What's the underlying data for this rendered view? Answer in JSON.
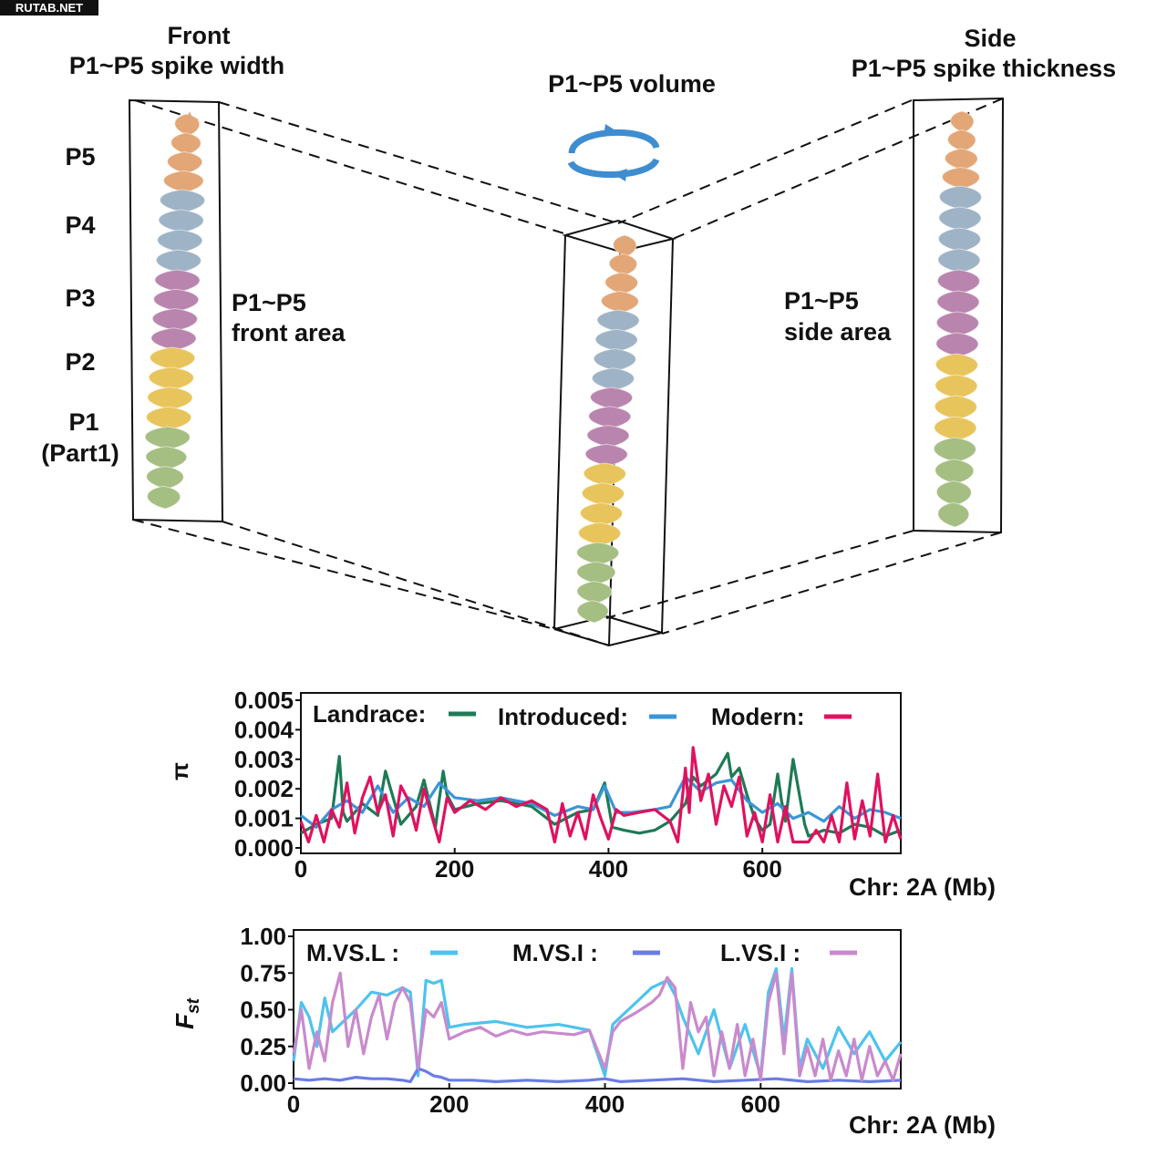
{
  "watermark": "RUTAB.NET",
  "diagram": {
    "front_title_1": "Front",
    "front_title_2": "P1~P5 spike width",
    "volume_title": "P1~P5 volume",
    "side_title_1": "Side",
    "side_title_2": "P1~P5 spike thickness",
    "part_labels": [
      "P5",
      "P4",
      "P3",
      "P2",
      "P1"
    ],
    "part1_note": "(Part1)",
    "front_area_1": "P1~P5",
    "front_area_2": "front area",
    "side_area_1": "P1~P5",
    "side_area_2": "side area",
    "part_colors": {
      "P5": "#E3A676",
      "P4": "#9FB3C6",
      "P3": "#B985AE",
      "P2": "#E8C45C",
      "P1": "#A5BE82"
    },
    "rotate_arrow_color": "#3D8DD0"
  },
  "chart_data": [
    {
      "type": "line",
      "ylabel": "π",
      "xlabel": "Chr: 2A (Mb)",
      "xlim": [
        0,
        780
      ],
      "ylim": [
        0,
        0.005
      ],
      "xticks": [
        "0",
        "200",
        "400",
        "600"
      ],
      "yticks": [
        "0.000",
        "0.001",
        "0.002",
        "0.003",
        "0.004",
        "0.005"
      ],
      "legend": [
        "Landrace:",
        "Introduced:",
        "Modern:"
      ],
      "series": [
        {
          "name": "Landrace",
          "color": "#1E7A55",
          "x": [
            0,
            20,
            40,
            50,
            55,
            60,
            80,
            100,
            110,
            130,
            150,
            160,
            175,
            185,
            190,
            200,
            230,
            260,
            300,
            330,
            360,
            380,
            395,
            405,
            420,
            440,
            460,
            480,
            500,
            510,
            520,
            540,
            555,
            560,
            570,
            580,
            590,
            600,
            610,
            620,
            625,
            630,
            640,
            655,
            660,
            680,
            700,
            720,
            740,
            760,
            780
          ],
          "y": [
            0.0005,
            0.0008,
            0.001,
            0.0031,
            0.0012,
            0.0009,
            0.0015,
            0.0011,
            0.0026,
            0.0008,
            0.0014,
            0.0023,
            0.0007,
            0.0026,
            0.0018,
            0.0013,
            0.0015,
            0.0016,
            0.0014,
            0.0008,
            0.0012,
            0.0013,
            0.0022,
            0.0007,
            0.0006,
            0.0005,
            0.0006,
            0.0009,
            0.0015,
            0.0024,
            0.0021,
            0.0025,
            0.0032,
            0.0024,
            0.0027,
            0.0018,
            0.001,
            0.0006,
            0.0008,
            0.0025,
            0.0016,
            0.0009,
            0.003,
            0.0008,
            0.0004,
            0.0006,
            0.0005,
            0.0008,
            0.0007,
            0.0004,
            0.0006
          ]
        },
        {
          "name": "Introduced",
          "color": "#3A96D8",
          "x": [
            0,
            20,
            40,
            60,
            80,
            100,
            120,
            140,
            160,
            180,
            200,
            230,
            260,
            300,
            330,
            360,
            380,
            395,
            410,
            430,
            460,
            480,
            500,
            520,
            540,
            560,
            580,
            600,
            620,
            640,
            660,
            680,
            700,
            720,
            740,
            760,
            780
          ],
          "y": [
            0.0011,
            0.0007,
            0.0013,
            0.0016,
            0.0012,
            0.0021,
            0.0012,
            0.0017,
            0.0014,
            0.0022,
            0.0017,
            0.0016,
            0.0017,
            0.0015,
            0.0011,
            0.0014,
            0.0013,
            0.0021,
            0.0012,
            0.0012,
            0.0013,
            0.0014,
            0.0024,
            0.0019,
            0.0022,
            0.0023,
            0.0016,
            0.0012,
            0.0015,
            0.001,
            0.0012,
            0.0009,
            0.0014,
            0.001,
            0.0013,
            0.0012,
            0.001
          ]
        },
        {
          "name": "Modern",
          "color": "#E0115F",
          "x": [
            0,
            10,
            20,
            30,
            40,
            50,
            60,
            70,
            80,
            90,
            100,
            110,
            120,
            130,
            140,
            150,
            160,
            170,
            180,
            190,
            200,
            220,
            240,
            260,
            280,
            300,
            320,
            330,
            340,
            350,
            360,
            370,
            380,
            390,
            400,
            410,
            420,
            440,
            460,
            480,
            490,
            500,
            505,
            510,
            520,
            530,
            540,
            550,
            560,
            570,
            580,
            590,
            600,
            610,
            620,
            630,
            640,
            650,
            660,
            670,
            680,
            690,
            700,
            710,
            720,
            730,
            740,
            750,
            760,
            770,
            780
          ],
          "y": [
            0.0009,
            0.0002,
            0.0011,
            0.0002,
            0.0013,
            0.0007,
            0.0022,
            0.0005,
            0.0017,
            0.0024,
            0.0012,
            0.0018,
            0.0004,
            0.0021,
            0.0016,
            0.0006,
            0.002,
            0.0011,
            0.0002,
            0.0017,
            0.0012,
            0.0016,
            0.0013,
            0.0017,
            0.0014,
            0.0016,
            0.0013,
            0.0002,
            0.0015,
            0.0004,
            0.0012,
            0.0003,
            0.0018,
            0.001,
            0.0003,
            0.0013,
            0.0011,
            0.0012,
            0.0013,
            0.0009,
            0.0002,
            0.0027,
            0.0012,
            0.0034,
            0.0016,
            0.0025,
            0.0008,
            0.0021,
            0.0014,
            0.0024,
            0.0004,
            0.0012,
            0.0002,
            0.0018,
            0.0002,
            0.0014,
            0.0002,
            0.0002,
            0.0002,
            0.0006,
            0.0002,
            0.0011,
            0.0002,
            0.0022,
            0.0003,
            0.0016,
            0.0004,
            0.0025,
            0.0002,
            0.0011,
            0.0003
          ]
        }
      ]
    },
    {
      "type": "line",
      "ylabel": "Fst",
      "xlabel": "Chr: 2A (Mb)",
      "xlim": [
        0,
        780
      ],
      "ylim": [
        0,
        1.0
      ],
      "xticks": [
        "0",
        "200",
        "400",
        "600"
      ],
      "yticks": [
        "0.00",
        "0.25",
        "0.50",
        "0.75",
        "1.00"
      ],
      "legend": [
        "M.VS.L :",
        "M.VS.I :",
        "L.VS.I :"
      ],
      "series": [
        {
          "name": "M.VS.L",
          "color": "#4DC3EE",
          "x": [
            0,
            10,
            20,
            30,
            40,
            50,
            60,
            80,
            100,
            120,
            140,
            150,
            160,
            170,
            180,
            190,
            200,
            220,
            260,
            300,
            340,
            380,
            400,
            410,
            420,
            440,
            460,
            480,
            490,
            500,
            520,
            540,
            560,
            580,
            600,
            610,
            620,
            630,
            640,
            650,
            660,
            680,
            700,
            720,
            740,
            760,
            780
          ],
          "y": [
            0.15,
            0.55,
            0.45,
            0.25,
            0.58,
            0.35,
            0.4,
            0.5,
            0.62,
            0.6,
            0.65,
            0.62,
            0.05,
            0.7,
            0.68,
            0.7,
            0.38,
            0.4,
            0.42,
            0.38,
            0.4,
            0.36,
            0.05,
            0.4,
            0.45,
            0.55,
            0.65,
            0.7,
            0.6,
            0.45,
            0.2,
            0.5,
            0.1,
            0.4,
            0.05,
            0.62,
            0.78,
            0.3,
            0.78,
            0.1,
            0.3,
            0.1,
            0.38,
            0.2,
            0.35,
            0.15,
            0.28
          ]
        },
        {
          "name": "M.VS.I",
          "color": "#6B7CE6",
          "x": [
            0,
            20,
            40,
            60,
            80,
            100,
            120,
            140,
            150,
            160,
            170,
            180,
            190,
            200,
            230,
            260,
            300,
            340,
            380,
            400,
            420,
            460,
            500,
            540,
            580,
            620,
            660,
            700,
            740,
            780
          ],
          "y": [
            0.03,
            0.02,
            0.03,
            0.02,
            0.04,
            0.03,
            0.03,
            0.02,
            0.01,
            0.1,
            0.08,
            0.05,
            0.04,
            0.02,
            0.02,
            0.01,
            0.02,
            0.01,
            0.02,
            0.03,
            0.01,
            0.02,
            0.03,
            0.01,
            0.02,
            0.03,
            0.01,
            0.02,
            0.01,
            0.02
          ]
        },
        {
          "name": "L.VS.I",
          "color": "#C98ACD",
          "x": [
            0,
            10,
            20,
            30,
            40,
            50,
            60,
            70,
            80,
            90,
            100,
            110,
            120,
            130,
            140,
            150,
            160,
            170,
            180,
            190,
            200,
            220,
            240,
            260,
            280,
            300,
            320,
            340,
            360,
            380,
            400,
            410,
            420,
            440,
            460,
            470,
            480,
            490,
            500,
            510,
            520,
            530,
            540,
            550,
            560,
            570,
            580,
            590,
            600,
            610,
            620,
            630,
            640,
            650,
            660,
            670,
            680,
            690,
            700,
            710,
            720,
            730,
            740,
            750,
            760,
            770,
            780
          ],
          "y": [
            0.2,
            0.5,
            0.1,
            0.35,
            0.15,
            0.55,
            0.75,
            0.25,
            0.5,
            0.2,
            0.45,
            0.6,
            0.3,
            0.55,
            0.65,
            0.55,
            0.1,
            0.5,
            0.45,
            0.55,
            0.3,
            0.35,
            0.38,
            0.32,
            0.36,
            0.33,
            0.35,
            0.34,
            0.33,
            0.36,
            0.1,
            0.35,
            0.42,
            0.48,
            0.55,
            0.6,
            0.72,
            0.65,
            0.1,
            0.55,
            0.35,
            0.45,
            0.05,
            0.35,
            0.1,
            0.4,
            0.05,
            0.3,
            0.02,
            0.55,
            0.75,
            0.2,
            0.75,
            0.05,
            0.25,
            0.05,
            0.3,
            0.02,
            0.22,
            0.05,
            0.3,
            0.02,
            0.25,
            0.05,
            0.15,
            0.02,
            0.2
          ]
        }
      ]
    }
  ]
}
